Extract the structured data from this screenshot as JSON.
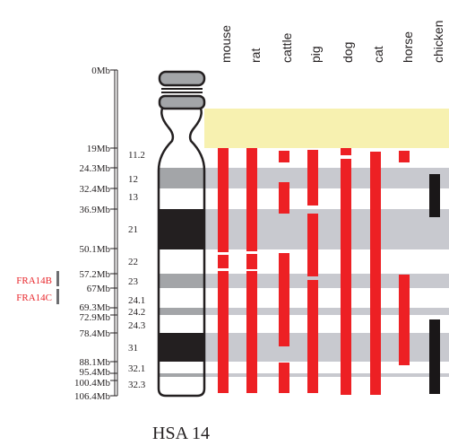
{
  "title": "HSA 14",
  "species": [
    "mouse",
    "rat",
    "cattle",
    "pig",
    "dog",
    "cat",
    "horse",
    "chicken"
  ],
  "mb_labels": [
    "0Mb",
    "19Mb",
    "24.3Mb",
    "32.4Mb",
    "36.9Mb",
    "50.1Mb",
    "57.2Mb",
    "67Mb",
    "69.3Mb",
    "72.9Mb",
    "78.4Mb",
    "88.1Mb",
    "95.4Mb",
    "100.4Mb",
    "106.4Mb"
  ],
  "bands": [
    "11.2",
    "12",
    "13",
    "21",
    "22",
    "23",
    "24.1",
    "24.2",
    "24.3",
    "31",
    "32.1",
    "32.3"
  ],
  "fragile_sites": [
    "FRA14B",
    "FRA14C"
  ],
  "colors": {
    "conserved_segment": "#ed2024",
    "fragile_site_text": "#e8262b",
    "chicken_segment": "#1a1718",
    "heterochromatin_box": "#f7f1b0",
    "band_stripe": "#c8c9cf",
    "dark_band": "#231f20",
    "grey_band": "#a3a5a8"
  }
}
